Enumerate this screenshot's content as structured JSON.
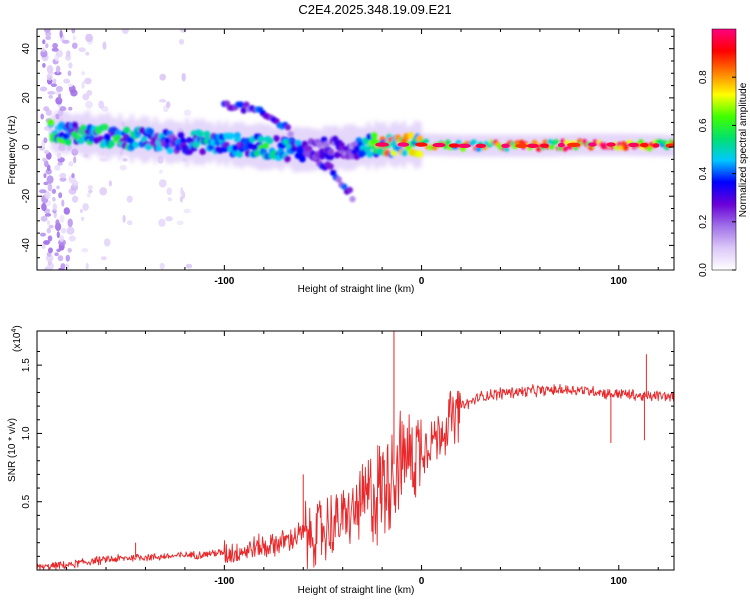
{
  "title": "C2E4.2025.348.19.09.E21",
  "chart_data": [
    {
      "type": "heatmap",
      "name": "spectrogram",
      "xlabel": "Height of straight line (km)",
      "ylabel": "Frequency (Hz)",
      "xlim": [
        -195,
        128
      ],
      "ylim": [
        -50,
        48
      ],
      "xticks": [
        -100,
        0,
        100
      ],
      "xtick_labels": [
        "-100",
        "0",
        "100"
      ],
      "yticks": [
        -40,
        -20,
        0,
        20,
        40
      ],
      "ytick_labels": [
        "-40",
        "-20",
        "0",
        "20",
        "40"
      ],
      "colorbar": {
        "label": "Normalized spectral amplitude",
        "range": [
          0,
          1
        ],
        "ticks": [
          0.0,
          0.2,
          0.4,
          0.6,
          0.8
        ],
        "tick_labels": [
          "0.0",
          "0.2",
          "0.4",
          "0.6",
          "0.8"
        ],
        "colors": [
          "#ffffff",
          "#dcc8f8",
          "#a070e8",
          "#6a00d8",
          "#0000ff",
          "#00c8ff",
          "#00e070",
          "#40ff00",
          "#ffff00",
          "#ff8000",
          "#ff0000",
          "#ff0080"
        ]
      },
      "track": {
        "x": [
          -185,
          -170,
          -155,
          -140,
          -125,
          -110,
          -95,
          -80,
          -65,
          -50,
          -35,
          -20,
          0,
          20,
          40,
          60,
          80,
          100,
          128
        ],
        "center_hz": [
          6,
          5,
          4,
          3,
          2,
          2,
          1,
          0,
          -1,
          -1,
          0,
          1,
          1,
          0.5,
          0.5,
          0.5,
          1,
          1,
          0.5
        ],
        "amplitude": [
          0.55,
          0.45,
          0.5,
          0.45,
          0.35,
          0.45,
          0.4,
          0.5,
          0.4,
          0.3,
          0.25,
          0.7,
          0.65,
          0.75,
          0.8,
          0.85,
          0.95,
          0.85,
          0.75
        ]
      },
      "branches": [
        {
          "x": [
            -100,
            -85,
            -75,
            -65
          ],
          "hz": [
            18,
            15,
            11,
            6
          ]
        },
        {
          "x": [
            -70,
            -55,
            -45,
            -35
          ],
          "hz": [
            4,
            -4,
            -10,
            -20
          ]
        }
      ]
    },
    {
      "type": "line",
      "name": "snr",
      "xlabel": "Height of straight line (km)",
      "ylabel": "SNR (10 * v/v)",
      "y_multiplier": "(x10",
      "y_multiplier_exp": "4",
      "y_multiplier_close": ")",
      "xlim": [
        -195,
        128
      ],
      "ylim": [
        0,
        1.75
      ],
      "xticks": [
        -100,
        0,
        100
      ],
      "xtick_labels": [
        "-100",
        "0",
        "100"
      ],
      "yticks": [
        0.5,
        1.0,
        1.5
      ],
      "ytick_labels": [
        "0.5",
        "1.0",
        "1.5"
      ],
      "color": "#e8282a",
      "series": [
        {
          "name": "SNR",
          "x": [
            -195,
            -180,
            -165,
            -150,
            -140,
            -130,
            -120,
            -110,
            -100,
            -90,
            -80,
            -70,
            -60,
            -50,
            -40,
            -30,
            -25,
            -20,
            -15,
            -12,
            -10,
            -5,
            0,
            5,
            10,
            15,
            20,
            30,
            40,
            50,
            60,
            70,
            80,
            90,
            95,
            100,
            110,
            115,
            120,
            128
          ],
          "values": [
            0.02,
            0.04,
            0.07,
            0.09,
            0.1,
            0.1,
            0.11,
            0.12,
            0.13,
            0.15,
            0.18,
            0.22,
            0.27,
            0.32,
            0.38,
            0.5,
            0.58,
            0.68,
            0.75,
            0.82,
            0.85,
            0.88,
            0.92,
            0.97,
            1.03,
            1.12,
            1.2,
            1.27,
            1.3,
            1.31,
            1.32,
            1.32,
            1.32,
            1.31,
            1.29,
            1.3,
            1.28,
            1.27,
            1.28,
            1.27
          ],
          "spikes": [
            {
              "x": -14,
              "y": 1.75
            },
            {
              "x": -145,
              "y": 0.2
            },
            {
              "x": -60,
              "y": 0.7
            },
            {
              "x": 96,
              "y": 0.93
            },
            {
              "x": 113,
              "y": 0.95
            },
            {
              "x": 114,
              "y": 1.58
            }
          ]
        }
      ]
    }
  ]
}
